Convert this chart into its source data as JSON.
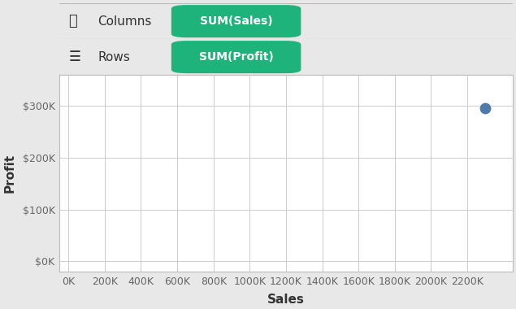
{
  "scatter_x": 2300000,
  "scatter_y": 296000,
  "dot_color": "#4e7aab",
  "dot_size": 80,
  "x_label": "Sales",
  "y_label": "Profit",
  "x_ticks": [
    0,
    200000,
    400000,
    600000,
    800000,
    1000000,
    1200000,
    1400000,
    1600000,
    1800000,
    2000000,
    2200000
  ],
  "x_tick_labels": [
    "0K",
    "200K",
    "400K",
    "600K",
    "800K",
    "1000K",
    "1200K",
    "1400K",
    "1600K",
    "1800K",
    "2000K",
    "2200K"
  ],
  "y_ticks": [
    0,
    100000,
    200000,
    300000
  ],
  "y_tick_labels": [
    "$0K",
    "$100K",
    "$200K",
    "$300K"
  ],
  "xlim": [
    -50000,
    2450000
  ],
  "ylim": [
    -20000,
    360000
  ],
  "bg_color": "#ffffff",
  "outer_bg": "#e8e8e8",
  "header_bg": "#e8e8e8",
  "pill_color": "#1db37a",
  "pill_text_color": "#ffffff",
  "columns_label": "Columns",
  "rows_label": "Rows",
  "columns_pill": "SUM(Sales)",
  "rows_pill": "SUM(Profit)",
  "grid_color": "#cccccc",
  "tick_label_color": "#666666",
  "axis_label_color": "#333333",
  "header_text_color": "#333333",
  "header_font_size": 11,
  "axis_label_font_size": 11,
  "tick_label_font_size": 9
}
